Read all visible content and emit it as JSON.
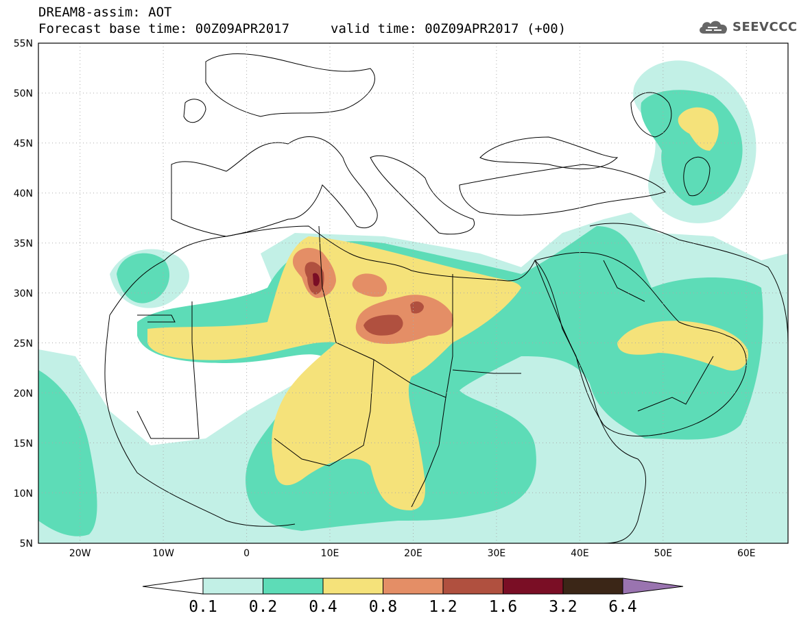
{
  "title": {
    "line1": "DREAM8-assim: AOT",
    "line2": "Forecast base time: 00Z09APR2017",
    "valid": "valid time: 00Z09APR2017 (+00)"
  },
  "logo": {
    "text": "SEEVCCC",
    "icon": "cloud-icon"
  },
  "map": {
    "projection": "lat-lon",
    "lon_range": [
      -25,
      65
    ],
    "lat_range": [
      5,
      55
    ],
    "lat_labels": [
      "55N",
      "50N",
      "45N",
      "40N",
      "35N",
      "30N",
      "25N",
      "20N",
      "15N",
      "10N",
      "5N"
    ],
    "lon_labels": [
      "20W",
      "10W",
      "0",
      "10E",
      "20E",
      "30E",
      "40E",
      "50E",
      "60E"
    ],
    "grid": "dotted"
  },
  "colorbar": {
    "levels": [
      "0.1",
      "0.2",
      "0.4",
      "0.8",
      "1.2",
      "1.6",
      "3.2",
      "6.4"
    ],
    "colors": [
      "#c2f0e6",
      "#5ddcb7",
      "#f5e27a",
      "#e48e66",
      "#b0503f",
      "#7a0e25",
      "#3b2617",
      "#9a74b0"
    ],
    "under_color": "#ffffff"
  }
}
